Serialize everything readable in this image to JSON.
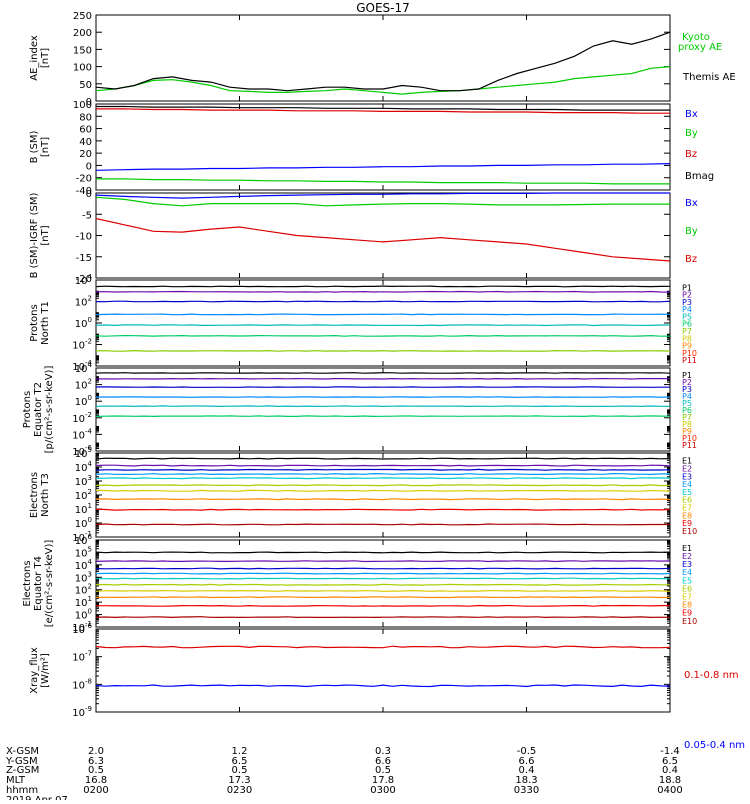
{
  "title": "GOES-17",
  "colors": {
    "black": "#000000",
    "blue": "#0000ff",
    "green": "#00cc00",
    "red": "#dd0000",
    "P1": "#000000",
    "P2": "#6a0dad",
    "P3": "#0000cc",
    "P4": "#0088ff",
    "P5": "#00bbbb",
    "P6": "#00cc66",
    "P7": "#88cc00",
    "P8": "#cccc00",
    "P9": "#ff8800",
    "P10": "#ff2200",
    "P11": "#cc0000",
    "E1": "#000000",
    "E2": "#6a0dad",
    "E3": "#0000cc",
    "E4": "#0099ff",
    "E5": "#00cccc",
    "E6": "#aacc00",
    "E7": "#ddcc00",
    "E8": "#ff8800",
    "E9": "#ee0000",
    "E10": "#aa0000"
  },
  "chart_data": [
    {
      "type": "line",
      "ylabel": "AE_index\n[nT]",
      "ylim": [
        0,
        250
      ],
      "yticks": [
        "0",
        "50",
        "100",
        "150",
        "200",
        "250"
      ],
      "legend": [
        "Kyoto proxy AE",
        "Themis AE"
      ],
      "series": [
        {
          "name": "Kyoto proxy AE",
          "color": "green",
          "values": [
            30,
            35,
            45,
            60,
            62,
            55,
            45,
            30,
            28,
            25,
            25,
            28,
            30,
            35,
            30,
            25,
            20,
            25,
            28,
            30,
            35,
            40,
            45,
            50,
            55,
            65,
            70,
            75,
            80,
            95,
            100
          ]
        },
        {
          "name": "Themis AE",
          "color": "black",
          "values": [
            40,
            35,
            45,
            65,
            70,
            60,
            55,
            40,
            35,
            35,
            30,
            35,
            40,
            40,
            35,
            35,
            45,
            40,
            30,
            30,
            35,
            60,
            80,
            95,
            110,
            130,
            160,
            175,
            165,
            180,
            200
          ]
        }
      ]
    },
    {
      "type": "line",
      "ylabel": "B (SM)\n[nT]",
      "ylim": [
        -40,
        100
      ],
      "yticks": [
        "-40",
        "-20",
        "0",
        "20",
        "40",
        "60",
        "80",
        "100"
      ],
      "legend": [
        "Bx",
        "By",
        "Bz",
        "Bmag"
      ],
      "series": [
        {
          "name": "Bx",
          "color": "blue",
          "values": [
            -8,
            -7,
            -6,
            -6,
            -5,
            -5,
            -4,
            -4,
            -3,
            -3,
            -2,
            -2,
            -1,
            -1,
            0,
            0,
            1,
            1,
            2,
            2,
            3
          ]
        },
        {
          "name": "By",
          "color": "green",
          "values": [
            -22,
            -22,
            -23,
            -23,
            -24,
            -24,
            -25,
            -25,
            -26,
            -26,
            -27,
            -27,
            -28,
            -28,
            -28,
            -29,
            -29,
            -29,
            -30,
            -30,
            -30
          ]
        },
        {
          "name": "Bz",
          "color": "red",
          "values": [
            92,
            92,
            91,
            91,
            90,
            90,
            90,
            89,
            89,
            89,
            88,
            88,
            88,
            87,
            87,
            87,
            86,
            86,
            86,
            85,
            85
          ]
        },
        {
          "name": "Bmag",
          "color": "black",
          "values": [
            96,
            96,
            95,
            95,
            95,
            94,
            94,
            94,
            93,
            93,
            93,
            92,
            92,
            92,
            91,
            91,
            91,
            90,
            90,
            90,
            90
          ]
        }
      ]
    },
    {
      "type": "line",
      "ylabel": "B (SM)-IGRF (SM)\n[nT]",
      "ylim": [
        -20,
        0
      ],
      "yticks": [
        "-20",
        "-15",
        "-10",
        "-5",
        "0"
      ],
      "legend": [
        "Bx",
        "By",
        "Bz"
      ],
      "series": [
        {
          "name": "Bx",
          "color": "blue",
          "values": [
            -0.5,
            -0.8,
            -1,
            -1.2,
            -1,
            -0.8,
            -0.6,
            -0.5,
            -0.4,
            -0.3,
            -0.3,
            -0.2,
            -0.2,
            -0.1,
            -0.1,
            -0.1,
            0,
            0,
            0,
            0,
            0
          ]
        },
        {
          "name": "By",
          "color": "green",
          "values": [
            -1,
            -1.5,
            -2.5,
            -3,
            -2.5,
            -2.5,
            -2.5,
            -2.5,
            -3,
            -2.8,
            -2.6,
            -2.5,
            -2.5,
            -2.6,
            -2.8,
            -2.8,
            -2.8,
            -2.7,
            -2.6,
            -2.6,
            -2.6
          ]
        },
        {
          "name": "Bz",
          "color": "red",
          "values": [
            -6,
            -7.5,
            -9,
            -9.2,
            -8.5,
            -8,
            -9,
            -10,
            -10.5,
            -11,
            -11.5,
            -11,
            -10.5,
            -11,
            -11.5,
            -12,
            -13,
            -14,
            -15,
            -15.5,
            -16
          ]
        }
      ]
    },
    {
      "type": "line",
      "log": true,
      "ylabel": "Protons\nNorth T1",
      "ylim": [
        -4,
        4
      ],
      "ytick_exps": [
        -4,
        -2,
        0,
        2,
        4
      ],
      "legend": [
        "P1",
        "P2",
        "P3",
        "P4",
        "P5",
        "P6",
        "P7",
        "P8",
        "P9",
        "P10",
        "P11"
      ],
      "series": [
        {
          "name": "P1",
          "exp": 3.4
        },
        {
          "name": "P2",
          "exp": 2.9
        },
        {
          "name": "P3",
          "exp": 2.0
        },
        {
          "name": "P4",
          "exp": 0.8
        },
        {
          "name": "P5",
          "exp": -0.2
        },
        {
          "name": "P6",
          "exp": -1.2
        },
        {
          "name": "P7",
          "exp": -2.6
        }
      ]
    },
    {
      "type": "line",
      "log": true,
      "ylabel": "Protons\nEquator T2\n[p/(cm²-s-sr-keV)]",
      "ylim": [
        -6,
        4
      ],
      "ytick_exps": [
        -6,
        -4,
        -2,
        0,
        2,
        4
      ],
      "legend": [
        "P1",
        "P2",
        "P3",
        "P4",
        "P5",
        "P6",
        "P7",
        "P8",
        "P9",
        "P10",
        "P11"
      ],
      "series": [
        {
          "name": "P1",
          "exp": 3.4
        },
        {
          "name": "P2",
          "exp": 2.7
        },
        {
          "name": "P3",
          "exp": 1.7
        },
        {
          "name": "P4",
          "exp": 0.5
        },
        {
          "name": "P5",
          "exp": -0.6
        },
        {
          "name": "P6",
          "exp": -1.8
        }
      ]
    },
    {
      "type": "line",
      "log": true,
      "ylabel": "Electrons\nNorth T3",
      "ylim": [
        -1,
        5
      ],
      "ytick_exps": [
        -1,
        0,
        1,
        2,
        3,
        4,
        5
      ],
      "legend": [
        "E1",
        "E2",
        "E3",
        "E4",
        "E5",
        "E6",
        "E7",
        "E8",
        "E9",
        "E10"
      ],
      "series": [
        {
          "name": "E1",
          "exp": 4.6
        },
        {
          "name": "E2",
          "exp": 4.1
        },
        {
          "name": "E3",
          "exp": 3.8
        },
        {
          "name": "E4",
          "exp": 3.5
        },
        {
          "name": "E5",
          "exp": 3.2
        },
        {
          "name": "E6",
          "exp": 2.7
        },
        {
          "name": "E7",
          "exp": 2.3
        },
        {
          "name": "E8",
          "exp": 1.7
        },
        {
          "name": "E9",
          "exp": 0.95
        },
        {
          "name": "E10",
          "exp": -0.1
        }
      ]
    },
    {
      "type": "line",
      "log": true,
      "ylabel": "Electrons\nEquator T4\n[e/(cm²-s-sr-keV)]",
      "ylim": [
        -1,
        6
      ],
      "ytick_exps": [
        -1,
        0,
        1,
        2,
        3,
        4,
        5,
        6
      ],
      "legend": [
        "E1",
        "E2",
        "E3",
        "E4",
        "E5",
        "E6",
        "E7",
        "E8",
        "E9",
        "E10"
      ],
      "series": [
        {
          "name": "E1",
          "exp": 5.0
        },
        {
          "name": "E2",
          "exp": 4.3
        },
        {
          "name": "E3",
          "exp": 3.7
        },
        {
          "name": "E4",
          "exp": 3.3
        },
        {
          "name": "E5",
          "exp": 2.9
        },
        {
          "name": "E6",
          "exp": 2.4
        },
        {
          "name": "E7",
          "exp": 1.9
        },
        {
          "name": "E8",
          "exp": 1.4
        },
        {
          "name": "E9",
          "exp": 0.7
        },
        {
          "name": "E10",
          "exp": -0.2
        }
      ]
    },
    {
      "type": "line",
      "log": true,
      "ylabel": "Xray_flux\n[W/m²]",
      "ylim": [
        -9,
        -6
      ],
      "ytick_exps": [
        -9,
        -8,
        -7,
        -6
      ],
      "legend": [
        "0.1-0.8 nm",
        "0.05-0.4 nm"
      ],
      "series": [
        {
          "name": "0.1-0.8 nm",
          "color": "red",
          "exp": -6.65
        },
        {
          "name": "0.05-0.4 nm",
          "color": "blue",
          "exp": -8.05
        }
      ]
    }
  ],
  "x_axis": {
    "row_labels": [
      "X-GSM",
      "Y-GSM",
      "Z-GSM",
      "MLT",
      "hhmm",
      "2019 Apr 07"
    ],
    "columns": [
      [
        "2.0",
        "6.3",
        "0.5",
        "16.8",
        "0200"
      ],
      [
        "1.2",
        "6.5",
        "0.5",
        "17.3",
        "0230"
      ],
      [
        "0.3",
        "6.6",
        "0.5",
        "17.8",
        "0300"
      ],
      [
        "-0.5",
        "6.6",
        "0.4",
        "18.3",
        "0330"
      ],
      [
        "-1.4",
        "6.5",
        "0.4",
        "18.8",
        "0400"
      ]
    ]
  }
}
